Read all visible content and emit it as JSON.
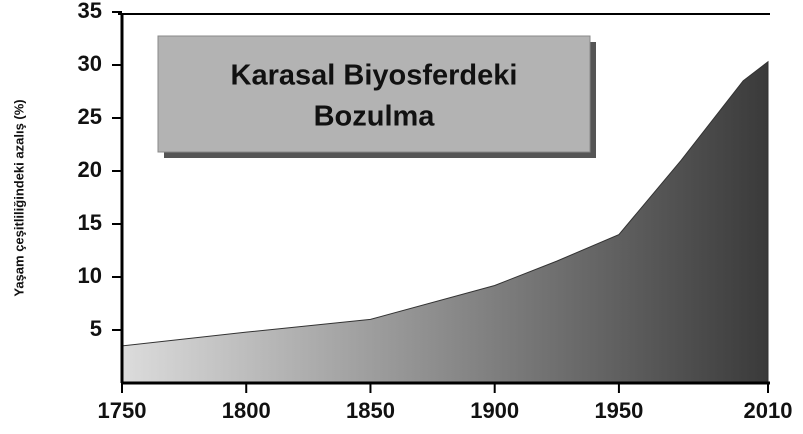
{
  "chart_data": {
    "type": "area",
    "title": [
      "Karasal Biyosferdeki",
      "Bozulma"
    ],
    "y_label": "Yaşam çeşitliliğindeki azalış (%)",
    "x": [
      1750,
      1800,
      1850,
      1900,
      1925,
      1950,
      1975,
      2000,
      2010
    ],
    "values": [
      3.5,
      4.8,
      6,
      9.2,
      11.5,
      14,
      21,
      28.5,
      30.3
    ],
    "gradient": [
      "#dcdcdc",
      "#3a3a3a"
    ],
    "xlim": [
      1750,
      2010
    ],
    "xticks": [
      1750,
      1800,
      1850,
      1900,
      1950,
      2010
    ],
    "ylim": [
      0,
      35
    ],
    "yticks": [
      5,
      10,
      15,
      20,
      25,
      30,
      35
    ],
    "grid": false
  }
}
